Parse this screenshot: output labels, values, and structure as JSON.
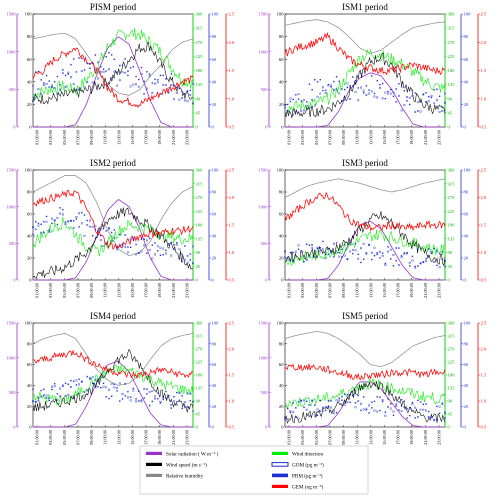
{
  "colors": {
    "solar": "#9933cc",
    "wind_speed": "#000000",
    "rh": "#888888",
    "wind_dir": "#00ee00",
    "gom": "#1f2fd6",
    "pbm": "#1f2fd6",
    "gem": "#ff0000"
  },
  "legend": {
    "items": [
      {
        "key": "solar",
        "label": "Solar  radiation  ( W m⁻² )",
        "style": "line"
      },
      {
        "key": "wind_dir",
        "label": "Wind  direction",
        "style": "line"
      },
      {
        "key": "wind_speed",
        "label": "Wind speed (m s⁻¹)",
        "style": "line"
      },
      {
        "key": "gom",
        "label": "GOM (pg m⁻³)",
        "style": "box"
      },
      {
        "key": "rh",
        "label": "Relative humidity",
        "style": "line"
      },
      {
        "key": "pbm",
        "label": "PBM (pg m⁻³)",
        "style": "square"
      },
      {
        "key": "gem",
        "label": "GEM (ng m⁻³)",
        "style": "line"
      }
    ]
  },
  "chart_data": [
    {
      "type": "line",
      "title": "PISM period",
      "x": [
        "01:00:00",
        "03:00:00",
        "05:00:00",
        "07:00:00",
        "09:00:00",
        "11:00:00",
        "13:00:00",
        "15:00:00",
        "17:00:00",
        "19:00:00",
        "21:00:00",
        "23:00:00"
      ],
      "axes": {
        "solar": [
          0,
          1500
        ],
        "pct": [
          0,
          100
        ],
        "wind_dir": [
          0,
          360
        ],
        "gom": [
          0,
          100
        ],
        "gem": [
          0.5,
          2.5
        ]
      },
      "ticks": {
        "solar": [
          0,
          500,
          1000,
          1500
        ],
        "pct": [
          0,
          20,
          40,
          60,
          80,
          100
        ],
        "wind_dir": [
          0,
          45,
          90,
          135,
          180,
          225,
          270,
          315,
          360
        ],
        "gom": [
          0,
          20,
          40,
          60,
          80,
          100
        ],
        "gem": [
          0.5,
          1.0,
          1.5,
          2.0,
          2.5
        ]
      },
      "series": {
        "solar": [
          0,
          0,
          0,
          0,
          30,
          300,
          700,
          1050,
          1200,
          1100,
          750,
          350,
          60,
          0,
          0,
          0
        ],
        "wind_speed": [
          25,
          25,
          26,
          28,
          30,
          32,
          36,
          40,
          48,
          60,
          70,
          72,
          55,
          40,
          30,
          25
        ],
        "rh": [
          78,
          80,
          82,
          83,
          78,
          65,
          50,
          38,
          30,
          28,
          33,
          45,
          55,
          68,
          75,
          78
        ],
        "wind_dir": [
          100,
          115,
          125,
          130,
          115,
          150,
          190,
          255,
          290,
          300,
          295,
          270,
          240,
          190,
          150,
          140
        ],
        "gom": [
          28,
          32,
          35,
          40,
          40,
          45,
          50,
          48,
          45,
          42,
          40,
          36,
          33,
          32,
          30,
          28
        ],
        "pbm": [
          40,
          45,
          42,
          50,
          55,
          60,
          62,
          58,
          55,
          50,
          45,
          42,
          40,
          38,
          36,
          35
        ],
        "gem": [
          1.4,
          1.5,
          1.7,
          1.8,
          1.9,
          1.7,
          1.5,
          1.2,
          1.0,
          0.95,
          0.9,
          1.0,
          1.1,
          1.2,
          1.3,
          1.35
        ]
      }
    },
    {
      "type": "line",
      "title": "ISM1 period",
      "x": [
        "01:00:00",
        "03:00:00",
        "05:00:00",
        "07:00:00",
        "09:00:00",
        "11:00:00",
        "13:00:00",
        "15:00:00",
        "17:00:00",
        "19:00:00",
        "21:00:00",
        "23:00:00"
      ],
      "axes": {
        "solar": [
          0,
          1500
        ],
        "pct": [
          0,
          100
        ],
        "wind_dir": [
          0,
          360
        ],
        "gom": [
          0,
          100
        ],
        "gem": [
          0.5,
          2.5
        ]
      },
      "ticks": {
        "solar": [
          0,
          500,
          1000,
          1500
        ],
        "pct": [
          0,
          20,
          40,
          60,
          80,
          100
        ],
        "wind_dir": [
          0,
          45,
          90,
          135,
          180,
          225,
          270,
          315,
          360
        ],
        "gom": [
          0,
          20,
          40,
          60,
          80,
          100
        ],
        "gem": [
          0.5,
          1.0,
          1.5,
          2.0,
          2.5
        ]
      },
      "series": {
        "solar": [
          0,
          0,
          0,
          0,
          20,
          200,
          480,
          650,
          720,
          680,
          500,
          250,
          40,
          0,
          0,
          0
        ],
        "wind_speed": [
          12,
          12,
          13,
          14,
          16,
          22,
          30,
          45,
          58,
          62,
          55,
          40,
          28,
          20,
          16,
          14
        ],
        "rh": [
          90,
          92,
          94,
          95,
          93,
          88,
          80,
          70,
          65,
          68,
          75,
          82,
          88,
          90,
          92,
          93
        ],
        "wind_dir": [
          60,
          65,
          70,
          75,
          90,
          120,
          170,
          220,
          235,
          230,
          215,
          200,
          175,
          150,
          130,
          120
        ],
        "gom": [
          18,
          20,
          22,
          25,
          28,
          30,
          32,
          30,
          28,
          26,
          24,
          22,
          22,
          20,
          20,
          18
        ],
        "pbm": [
          25,
          28,
          30,
          35,
          38,
          40,
          42,
          40,
          38,
          35,
          32,
          30,
          28,
          26,
          25,
          24
        ],
        "gem": [
          1.8,
          1.9,
          1.95,
          2.0,
          2.1,
          1.9,
          1.7,
          1.6,
          1.55,
          1.5,
          1.5,
          1.55,
          1.6,
          1.55,
          1.5,
          1.5
        ]
      }
    },
    {
      "type": "line",
      "title": "ISM2 period",
      "x": [
        "01:00:00",
        "03:00:00",
        "05:00:00",
        "07:00:00",
        "09:00:00",
        "11:00:00",
        "13:00:00",
        "15:00:00",
        "17:00:00",
        "19:00:00",
        "21:00:00",
        "23:00:00"
      ],
      "axes": {
        "solar": [
          0,
          1500
        ],
        "pct": [
          0,
          100
        ],
        "wind_dir": [
          0,
          360
        ],
        "gom": [
          0,
          100
        ],
        "gem": [
          0.5,
          2.5
        ]
      },
      "ticks": {
        "solar": [
          0,
          500,
          1000,
          1500
        ],
        "pct": [
          0,
          20,
          40,
          60,
          80,
          100
        ],
        "wind_dir": [
          0,
          45,
          90,
          135,
          180,
          225,
          270,
          315,
          360
        ],
        "gom": [
          0,
          20,
          40,
          60,
          80,
          100
        ],
        "gem": [
          0.5,
          1.0,
          1.5,
          2.0,
          2.5
        ]
      },
      "series": {
        "solar": [
          0,
          0,
          0,
          0,
          30,
          250,
          600,
          950,
          1100,
          1000,
          700,
          300,
          50,
          0,
          0,
          0
        ],
        "wind_speed": [
          5,
          6,
          8,
          12,
          18,
          25,
          40,
          55,
          60,
          62,
          55,
          48,
          40,
          30,
          20,
          10
        ],
        "rh": [
          80,
          85,
          90,
          95,
          95,
          88,
          70,
          45,
          28,
          22,
          25,
          35,
          55,
          70,
          80,
          85
        ],
        "wind_dir": [
          120,
          150,
          175,
          190,
          150,
          110,
          90,
          120,
          160,
          180,
          175,
          165,
          150,
          140,
          135,
          135
        ],
        "gom": [
          40,
          45,
          50,
          55,
          55,
          48,
          40,
          38,
          35,
          32,
          30,
          28,
          26,
          25,
          24,
          24
        ],
        "pbm": [
          45,
          50,
          55,
          60,
          58,
          50,
          45,
          42,
          38,
          35,
          32,
          30,
          28,
          26,
          25,
          25
        ],
        "gem": [
          1.9,
          1.95,
          2.0,
          2.05,
          2.1,
          1.8,
          1.4,
          1.15,
          1.1,
          1.2,
          1.3,
          1.35,
          1.35,
          1.4,
          1.4,
          1.45
        ]
      }
    },
    {
      "type": "line",
      "title": "ISM3 period",
      "x": [
        "01:00:00",
        "03:00:00",
        "05:00:00",
        "07:00:00",
        "09:00:00",
        "11:00:00",
        "13:00:00",
        "15:00:00",
        "17:00:00",
        "19:00:00",
        "21:00:00",
        "23:00:00"
      ],
      "axes": {
        "solar": [
          0,
          1500
        ],
        "pct": [
          0,
          100
        ],
        "wind_dir": [
          0,
          360
        ],
        "gom": [
          0,
          100
        ],
        "gem": [
          0.5,
          2.5
        ]
      },
      "ticks": {
        "solar": [
          0,
          500,
          1000,
          1500
        ],
        "pct": [
          0,
          20,
          40,
          60,
          80,
          100
        ],
        "wind_dir": [
          0,
          45,
          90,
          135,
          180,
          225,
          270,
          315,
          360
        ],
        "gom": [
          0,
          20,
          40,
          60,
          80,
          100
        ],
        "gem": [
          0.5,
          1.0,
          1.5,
          2.0,
          2.5
        ]
      },
      "series": {
        "solar": [
          0,
          0,
          0,
          0,
          20,
          200,
          500,
          750,
          800,
          700,
          450,
          200,
          30,
          0,
          0,
          0
        ],
        "wind_speed": [
          20,
          22,
          24,
          25,
          26,
          30,
          36,
          45,
          55,
          58,
          52,
          42,
          32,
          25,
          20,
          18
        ],
        "rh": [
          75,
          80,
          85,
          88,
          90,
          92,
          90,
          88,
          85,
          82,
          80,
          82,
          85,
          88,
          90,
          92
        ],
        "wind_dir": [
          60,
          70,
          75,
          80,
          90,
          100,
          110,
          130,
          145,
          150,
          140,
          130,
          120,
          110,
          100,
          95
        ],
        "gom": [
          22,
          24,
          25,
          26,
          28,
          28,
          26,
          25,
          24,
          22,
          22,
          20,
          20,
          20,
          18,
          18
        ],
        "pbm": [
          22,
          24,
          25,
          26,
          27,
          26,
          25,
          24,
          23,
          22,
          22,
          21,
          20,
          20,
          20,
          20
        ],
        "gem": [
          1.6,
          1.75,
          1.9,
          2.0,
          2.05,
          1.85,
          1.6,
          1.5,
          1.45,
          1.45,
          1.5,
          1.45,
          1.45,
          1.5,
          1.5,
          1.5
        ]
      }
    },
    {
      "type": "line",
      "title": "ISM4 period",
      "x": [
        "01:00:00",
        "03:00:00",
        "05:00:00",
        "07:00:00",
        "09:00:00",
        "11:00:00",
        "13:00:00",
        "15:00:00",
        "17:00:00",
        "19:00:00",
        "21:00:00",
        "23:00:00"
      ],
      "axes": {
        "solar": [
          0,
          1500
        ],
        "pct": [
          0,
          100
        ],
        "wind_dir": [
          0,
          360
        ],
        "gom": [
          0,
          100
        ],
        "gem": [
          0.5,
          2.5
        ]
      },
      "ticks": {
        "solar": [
          0,
          500,
          1000,
          1500
        ],
        "pct": [
          0,
          20,
          40,
          60,
          80,
          100
        ],
        "wind_dir": [
          0,
          45,
          90,
          135,
          180,
          225,
          270,
          315,
          360
        ],
        "gom": [
          0,
          20,
          40,
          60,
          80,
          100
        ],
        "gem": [
          0.5,
          1.0,
          1.5,
          2.0,
          2.5
        ]
      },
      "series": {
        "solar": [
          0,
          0,
          0,
          0,
          40,
          300,
          650,
          900,
          950,
          800,
          500,
          200,
          30,
          0,
          0,
          0
        ],
        "wind_speed": [
          18,
          20,
          22,
          25,
          28,
          32,
          40,
          55,
          65,
          70,
          60,
          45,
          32,
          25,
          20,
          18
        ],
        "rh": [
          80,
          85,
          88,
          90,
          85,
          70,
          55,
          45,
          40,
          42,
          50,
          65,
          78,
          85,
          88,
          90
        ],
        "wind_dir": [
          110,
          100,
          95,
          90,
          110,
          140,
          165,
          190,
          200,
          195,
          180,
          165,
          150,
          140,
          130,
          125
        ],
        "gom": [
          28,
          30,
          32,
          34,
          36,
          38,
          40,
          38,
          36,
          34,
          32,
          30,
          28,
          26,
          25,
          25
        ],
        "pbm": [
          30,
          32,
          34,
          36,
          38,
          40,
          38,
          36,
          34,
          32,
          30,
          28,
          26,
          25,
          24,
          24
        ],
        "gem": [
          1.75,
          1.8,
          1.85,
          1.9,
          1.95,
          1.8,
          1.7,
          1.6,
          1.55,
          1.5,
          1.5,
          1.55,
          1.6,
          1.55,
          1.5,
          1.5
        ]
      }
    },
    {
      "type": "line",
      "title": "ISM5 period",
      "x": [
        "01:00:00",
        "03:00:00",
        "05:00:00",
        "07:00:00",
        "09:00:00",
        "11:00:00",
        "13:00:00",
        "15:00:00",
        "17:00:00",
        "19:00:00",
        "21:00:00",
        "23:00:00"
      ],
      "axes": {
        "solar": [
          0,
          1500
        ],
        "pct": [
          0,
          100
        ],
        "wind_dir": [
          0,
          360
        ],
        "gom": [
          0,
          100
        ],
        "gem": [
          0.5,
          2.5
        ]
      },
      "ticks": {
        "solar": [
          0,
          500,
          1000,
          1500
        ],
        "pct": [
          0,
          20,
          40,
          60,
          80,
          100
        ],
        "wind_dir": [
          0,
          45,
          90,
          135,
          180,
          225,
          270,
          315,
          360
        ],
        "gom": [
          0,
          20,
          40,
          60,
          80,
          100
        ],
        "gem": [
          0.5,
          1.0,
          1.5,
          2.0,
          2.5
        ]
      },
      "series": {
        "solar": [
          0,
          0,
          0,
          0,
          20,
          200,
          450,
          650,
          650,
          550,
          350,
          150,
          20,
          0,
          0,
          0
        ],
        "wind_speed": [
          8,
          9,
          10,
          12,
          15,
          20,
          28,
          38,
          42,
          40,
          32,
          22,
          14,
          10,
          8,
          8
        ],
        "rh": [
          85,
          88,
          90,
          92,
          90,
          85,
          78,
          70,
          60,
          58,
          62,
          70,
          78,
          82,
          86,
          88
        ],
        "wind_dir": [
          80,
          85,
          90,
          95,
          100,
          110,
          125,
          140,
          150,
          145,
          135,
          125,
          115,
          105,
          100,
          95
        ],
        "gom": [
          15,
          16,
          17,
          18,
          20,
          22,
          24,
          24,
          22,
          20,
          18,
          17,
          16,
          15,
          15,
          15
        ],
        "pbm": [
          16,
          17,
          18,
          19,
          20,
          22,
          23,
          22,
          21,
          20,
          19,
          18,
          17,
          16,
          16,
          16
        ],
        "gem": [
          1.65,
          1.65,
          1.65,
          1.65,
          1.6,
          1.55,
          1.5,
          1.45,
          1.5,
          1.5,
          1.55,
          1.55,
          1.55,
          1.5,
          1.55,
          1.55
        ]
      }
    }
  ]
}
